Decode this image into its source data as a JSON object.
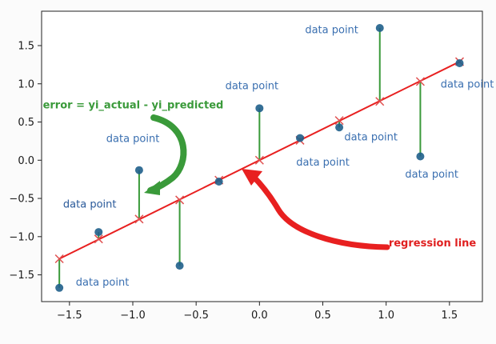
{
  "chart_data": {
    "type": "scatter",
    "title": "",
    "xlabel": "",
    "ylabel": "",
    "xlim": [
      -1.72,
      1.76
    ],
    "ylim": [
      -1.85,
      1.95
    ],
    "grid": false,
    "x_ticks": [
      -1.5,
      -1.0,
      -0.5,
      0.0,
      0.5,
      1.0,
      1.5
    ],
    "x_tick_labels": [
      "−1.5",
      "−1.0",
      "−0.5",
      "0.0",
      "0.5",
      "1.0",
      "1.5"
    ],
    "y_ticks": [
      -1.5,
      -1.0,
      -0.5,
      0.0,
      0.5,
      1.0,
      1.5
    ],
    "y_tick_labels": [
      "−1.5",
      "−1.0",
      "−0.5",
      "0.0",
      "0.5",
      "1.0",
      "1.5"
    ],
    "points": {
      "x": [
        -1.58,
        -1.27,
        -0.95,
        -0.63,
        -0.32,
        0.0,
        0.32,
        0.63,
        0.95,
        1.27,
        1.58
      ],
      "y_actual": [
        -1.67,
        -0.94,
        -0.13,
        -1.38,
        -0.28,
        0.68,
        0.29,
        0.43,
        1.73,
        0.05,
        1.27
      ],
      "y_predicted": [
        -1.29,
        -1.03,
        -0.77,
        -0.52,
        -0.26,
        0.0,
        0.26,
        0.52,
        0.77,
        1.03,
        1.29
      ]
    },
    "regression_line": {
      "x": [
        -1.58,
        1.58
      ],
      "y": [
        -1.29,
        1.29
      ]
    },
    "colors": {
      "actual": "#1f5f8b",
      "predicted": "#e05050",
      "regression": "#e82020",
      "error": "#3a9a3a"
    },
    "annotations": [
      {
        "text": "data point",
        "x": -1.45,
        "y": -1.64,
        "style": "blue"
      },
      {
        "text": "data point",
        "x": -1.55,
        "y": -0.62,
        "style": "dark"
      },
      {
        "text": "data point",
        "x": -1.21,
        "y": 0.24,
        "style": "blue"
      },
      {
        "text": "data point",
        "x": -0.27,
        "y": 0.93,
        "style": "blue"
      },
      {
        "text": "data point",
        "x": 0.29,
        "y": -0.07,
        "style": "blue"
      },
      {
        "text": "data point",
        "x": 0.67,
        "y": 0.26,
        "style": "blue"
      },
      {
        "text": "data point",
        "x": 0.36,
        "y": 1.66,
        "style": "blue"
      },
      {
        "text": "data point",
        "x": 1.15,
        "y": -0.23,
        "style": "blue"
      },
      {
        "text": "data point",
        "x": 1.43,
        "y": 0.95,
        "style": "blue"
      },
      {
        "text": "error = yi_actual - yi_predicted",
        "x": -1.71,
        "y": 0.68,
        "style": "error"
      },
      {
        "text": "regression line",
        "x": 1.02,
        "y": -1.13,
        "style": "regression"
      }
    ]
  }
}
